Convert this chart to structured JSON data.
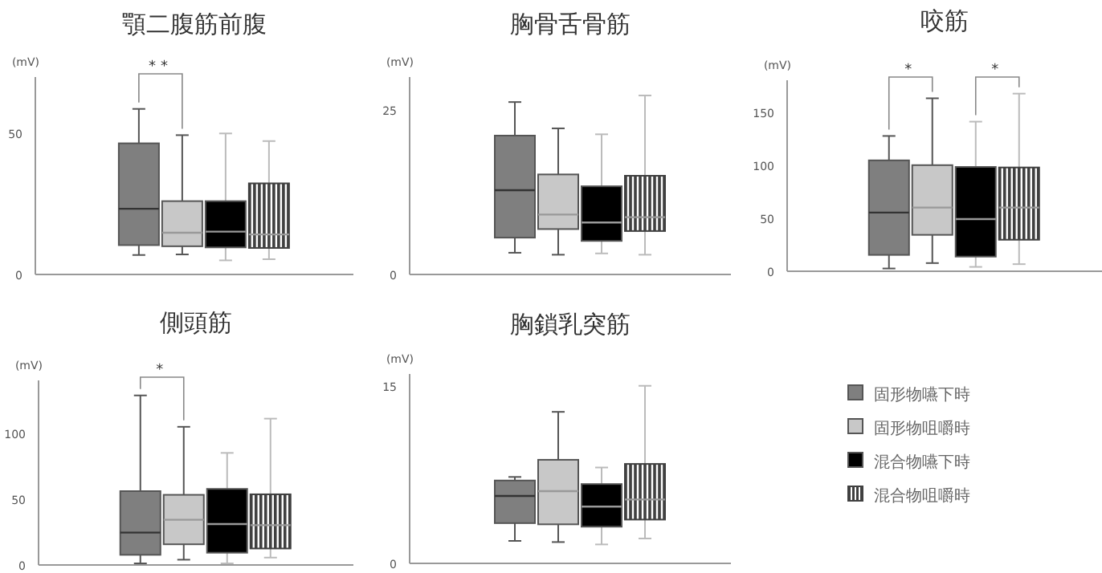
{
  "chart_data": [
    {
      "type": "box",
      "title": "顎二腹筋前腹",
      "ylabel": "(mV)",
      "categories": [
        null
      ],
      "ylim": [
        0,
        70
      ],
      "yticks": [
        0,
        50
      ],
      "tick_labels": "y",
      "annotations": [
        "**"
      ],
      "series": [
        {
          "color": "#7f7f7f",
          "boxes": [
            {
              "low": 6.9,
              "q1": 10.4,
              "median": 23.3,
              "q3": 46.5,
              "high": 58.7
            }
          ]
        },
        {
          "color": "#c8c8c8",
          "boxes": [
            {
              "low": 7.1,
              "q1": 10,
              "median": 14.8,
              "q3": 26,
              "high": 49.4
            }
          ]
        },
        {
          "color": "#000000",
          "boxes": [
            {
              "low": 5,
              "q1": 9.6,
              "median": 15.2,
              "q3": 26,
              "high": 50
            }
          ]
        },
        {
          "color": "#404040",
          "boxes": [
            {
              "low": 5.4,
              "q1": 9.4,
              "median": 14.2,
              "q3": 32.3,
              "high": 47.3
            }
          ]
        }
      ]
    },
    {
      "type": "box",
      "title": "胸骨舌骨筋",
      "ylabel": "(mV)",
      "categories": [
        null
      ],
      "ylim": [
        0,
        30
      ],
      "yticks": [
        0,
        25
      ],
      "tick_labels": "y",
      "series": [
        {
          "color": "#7f7f7f",
          "boxes": [
            {
              "low": 3.3,
              "q1": 5.6,
              "median": 12.8,
              "q3": 21.1,
              "high": 26.2
            }
          ]
        },
        {
          "color": "#c8c8c8",
          "boxes": [
            {
              "low": 3,
              "q1": 6.9,
              "median": 9.1,
              "q3": 15.2,
              "high": 22.2
            }
          ]
        },
        {
          "color": "#000000",
          "boxes": [
            {
              "low": 3.2,
              "q1": 5.1,
              "median": 7.9,
              "q3": 13.4,
              "high": 21.3
            }
          ]
        },
        {
          "color": "#404040",
          "boxes": [
            {
              "low": 3,
              "q1": 6.6,
              "median": 8.7,
              "q3": 15,
              "high": 27.2
            }
          ]
        }
      ]
    },
    {
      "type": "box",
      "title": "咬筋",
      "ylabel": "(mV)",
      "categories": [
        null
      ],
      "ylim": [
        0,
        180
      ],
      "yticks": [
        0,
        50,
        100,
        150
      ],
      "tick_labels": "y",
      "annotations": [
        "*",
        "*"
      ],
      "series": [
        {
          "color": "#7f7f7f",
          "boxes": [
            {
              "low": 2.6,
              "q1": 15.4,
              "median": 55.3,
              "q3": 104.5,
              "high": 127.5
            }
          ]
        },
        {
          "color": "#c8c8c8",
          "boxes": [
            {
              "low": 7.7,
              "q1": 34.3,
              "median": 60,
              "q3": 100,
              "high": 163
            }
          ]
        },
        {
          "color": "#000000",
          "boxes": [
            {
              "low": 4.1,
              "q1": 13.8,
              "median": 49.2,
              "q3": 98.3,
              "high": 141
            }
          ]
        },
        {
          "color": "#404040",
          "boxes": [
            {
              "low": 6.7,
              "q1": 29.7,
              "median": 60,
              "q3": 97.8,
              "high": 167.4
            }
          ]
        }
      ]
    },
    {
      "type": "box",
      "title": "側頭筋",
      "ylabel": "(mV)",
      "categories": [
        null
      ],
      "ylim": [
        0,
        140
      ],
      "yticks": [
        0,
        50,
        100
      ],
      "tick_labels": "y",
      "annotations": [
        "*"
      ],
      "series": [
        {
          "color": "#7f7f7f",
          "boxes": [
            {
              "low": 1.2,
              "q1": 7.7,
              "median": 24.6,
              "q3": 56,
              "high": 128.6
            }
          ]
        },
        {
          "color": "#c8c8c8",
          "boxes": [
            {
              "low": 4,
              "q1": 15.7,
              "median": 34.3,
              "q3": 53.2,
              "high": 104.8
            }
          ]
        },
        {
          "color": "#000000",
          "boxes": [
            {
              "low": 1.2,
              "q1": 9.3,
              "median": 31,
              "q3": 57.7,
              "high": 85
            }
          ]
        },
        {
          "color": "#404040",
          "boxes": [
            {
              "low": 5.6,
              "q1": 12.5,
              "median": 30.2,
              "q3": 53.6,
              "high": 111
            }
          ]
        }
      ]
    },
    {
      "type": "box",
      "title": "胸鎖乳突筋",
      "ylabel": "(mV)",
      "categories": [
        null
      ],
      "ylim": [
        0,
        16
      ],
      "yticks": [
        0,
        15
      ],
      "tick_labels": "y",
      "legend": "right",
      "series": [
        {
          "name": "固形物嚥下時",
          "color": "#7f7f7f",
          "boxes": [
            {
              "low": 1.9,
              "q1": 3.4,
              "median": 5.7,
              "q3": 7,
              "high": 7.3
            }
          ]
        },
        {
          "name": "固形物咀嚼時",
          "color": "#c8c8c8",
          "boxes": [
            {
              "low": 1.8,
              "q1": 3.3,
              "median": 6.1,
              "q3": 8.75,
              "high": 12.8
            }
          ]
        },
        {
          "name": "混合物嚥下時",
          "color": "#000000",
          "boxes": [
            {
              "low": 1.6,
              "q1": 3.1,
              "median": 4.8,
              "q3": 6.7,
              "high": 8.1
            }
          ]
        },
        {
          "name": "混合物咀嚼時",
          "color": "#404040",
          "boxes": [
            {
              "low": 2.1,
              "q1": 3.7,
              "median": 5.4,
              "q3": 8.4,
              "high": 15
            }
          ]
        }
      ]
    }
  ]
}
